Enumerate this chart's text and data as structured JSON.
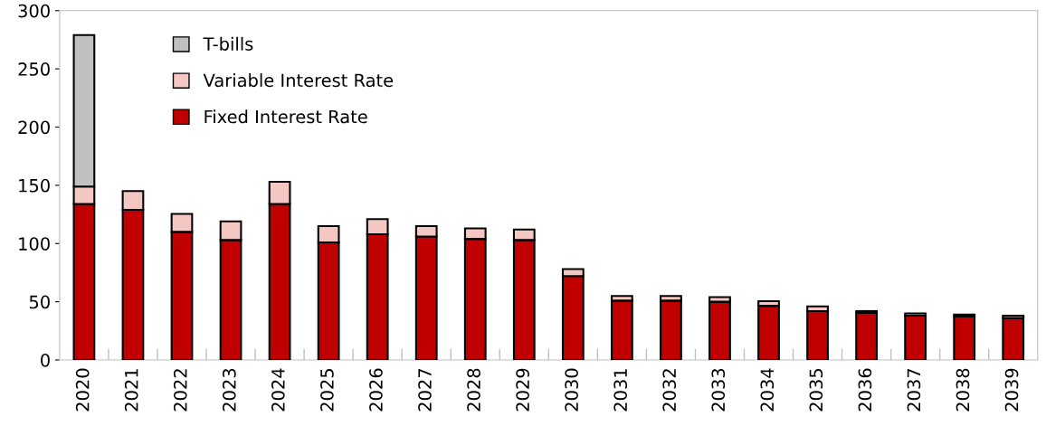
{
  "chart_data": {
    "type": "bar",
    "stacked": true,
    "categories": [
      "2020",
      "2021",
      "2022",
      "2023",
      "2024",
      "2025",
      "2026",
      "2027",
      "2028",
      "2029",
      "2030",
      "2031",
      "2032",
      "2033",
      "2034",
      "2035",
      "2036",
      "2037",
      "2038",
      "2039"
    ],
    "series": [
      {
        "name": "Fixed Interest Rate",
        "color": "#c00000",
        "values": [
          134,
          129,
          110,
          103,
          134,
          101,
          108,
          106,
          104,
          103,
          72,
          51,
          51,
          50,
          46.5,
          42,
          40.5,
          38,
          37.5,
          36
        ]
      },
      {
        "name": "Variable Interest Rate",
        "color": "#f4c7c3",
        "values": [
          15,
          16,
          15.5,
          16,
          19,
          14,
          13,
          9,
          9,
          9,
          6,
          4,
          4,
          4,
          4,
          4,
          1.5,
          2,
          1.5,
          2
        ]
      },
      {
        "name": "T-bills",
        "color": "#c0c0c0",
        "values": [
          130,
          null,
          null,
          null,
          null,
          null,
          null,
          null,
          null,
          null,
          null,
          null,
          null,
          null,
          null,
          null,
          null,
          null,
          null,
          null
        ]
      }
    ],
    "ylim": [
      0,
      300
    ],
    "yticks": [
      0,
      50,
      100,
      150,
      200,
      250,
      300
    ],
    "grid": false,
    "legend": "top left"
  }
}
